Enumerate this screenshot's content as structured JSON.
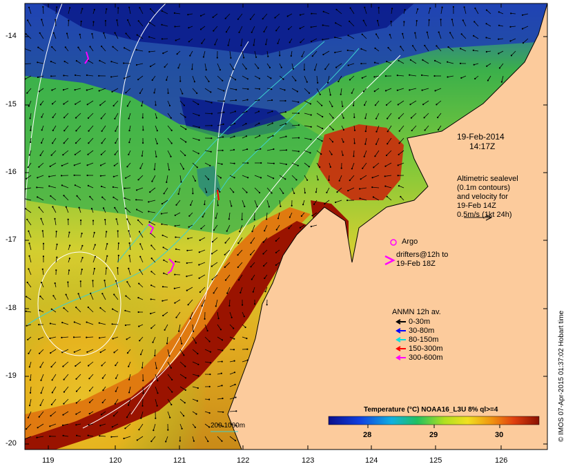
{
  "map": {
    "lon_ticks": [
      "119",
      "120",
      "121",
      "122",
      "123",
      "124",
      "125",
      "126"
    ],
    "lat_ticks": [
      "-14",
      "-15",
      "-16",
      "-17",
      "-18",
      "-19",
      "-20"
    ],
    "date": "19-Feb-2014",
    "time": "14:17Z",
    "altimetry_text": [
      "Altimetric sealevel",
      "(0.1m contours)",
      "and velocity for",
      "19-Feb 14Z",
      "0.5m/s (1kt 24h)"
    ],
    "argo_label": "Argo",
    "drifters_text": [
      "drifters@12h to",
      "19-Feb 18Z"
    ],
    "anmn_title": "ANMN 12h av.",
    "anmn_items": [
      {
        "label": "0-30m",
        "color": "#000000"
      },
      {
        "label": "30-80m",
        "color": "#0000ff"
      },
      {
        "label": "80-150m",
        "color": "#00e0e0"
      },
      {
        "label": "150-300m",
        "color": "#ff0000"
      },
      {
        "label": "300-600m",
        "color": "#ff00ff"
      }
    ],
    "depth_label": "200  1000m",
    "colorbar_title": "Temperature (°C) NOAA16_L3U 8% ql>=4",
    "colorbar_ticks": [
      "28",
      "29",
      "30"
    ],
    "credit": "© IMOS 07-Apr-2015 01:37:02 Hobart time",
    "colors": {
      "land": "#fccb9c",
      "warm": "#9a1300",
      "cool": "#0b1d8c"
    }
  }
}
